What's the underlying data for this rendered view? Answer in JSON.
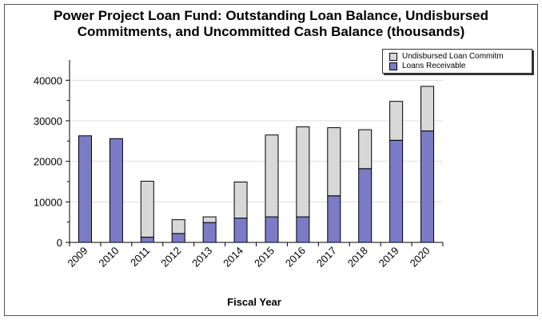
{
  "chart_data": {
    "type": "bar",
    "stacked": true,
    "title": "Power Project Loan Fund: Outstanding Loan Balance, Undisbursed Commitments, and Uncommitted Cash Balance (thousands)",
    "title_lines": [
      "Power Project Loan Fund: Outstanding Loan Balance, Undisbursed",
      "Commitments, and Uncommitted Cash Balance (thousands)"
    ],
    "xlabel": "Fiscal Year",
    "ylabel": "",
    "ylim": [
      0,
      45000
    ],
    "yticks": [
      0,
      10000,
      20000,
      30000,
      40000
    ],
    "categories": [
      "2009",
      "2010",
      "2011",
      "2012",
      "2013",
      "2014",
      "2015",
      "2016",
      "2017",
      "2018",
      "2019",
      "2020"
    ],
    "series": [
      {
        "name": "Loans Receivable",
        "color": "#7b7bc6",
        "values": [
          26300,
          25600,
          1300,
          2200,
          4900,
          6000,
          6300,
          6300,
          11500,
          18200,
          25200,
          27500
        ]
      },
      {
        "name": "Undisbursed Loan Commitm",
        "color": "#d8d8d8",
        "values": [
          0,
          0,
          13800,
          3400,
          1400,
          8900,
          20200,
          22200,
          16800,
          9600,
          9600,
          11000
        ]
      }
    ],
    "legend": {
      "position": "top-right",
      "entries": [
        "Undisbursed Loan Commitm",
        "Loans Receivable"
      ]
    },
    "grid": "horizontal"
  }
}
